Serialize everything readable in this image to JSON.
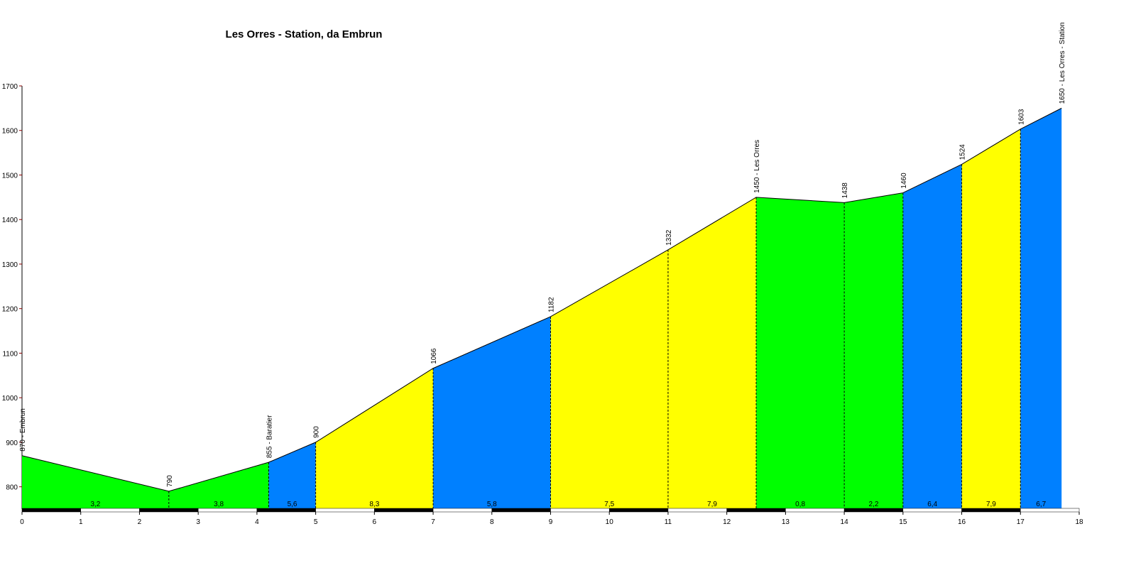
{
  "chart_data": {
    "type": "elevation-profile",
    "title": "Les Orres - Station, da Embrun",
    "x": [
      0,
      2.5,
      4.2,
      5,
      7,
      9,
      11,
      12.5,
      14,
      15,
      16,
      17,
      17.7
    ],
    "values": [
      870,
      790,
      855,
      900,
      1066,
      1182,
      1332,
      1450,
      1438,
      1460,
      1524,
      1603,
      1650
    ],
    "value_labels": [
      "870 - Embrun",
      "790",
      "855 - Baratier",
      "900",
      "1066",
      "1182",
      "1332",
      "1450 - Les Orres",
      "1438",
      "1460",
      "1524",
      "1603",
      "1650 - Les Orres - Station"
    ],
    "grades": [
      3.2,
      3.8,
      5.6,
      8.3,
      5.8,
      7.5,
      7.9,
      0.8,
      2.2,
      6.4,
      7.9,
      6.7
    ],
    "grade_labels": [
      "3,2",
      "3,8",
      "5,6",
      "8,3",
      "5,8",
      "7,5",
      "7,9",
      "0,8",
      "2,2",
      "6,4",
      "7,9",
      "6,7"
    ],
    "colors": [
      "#00ff00",
      "#00ff00",
      "#0080ff",
      "#ffff00",
      "#0080ff",
      "#ffff00",
      "#ffff00",
      "#00ff00",
      "#00ff00",
      "#0080ff",
      "#ffff00",
      "#0080ff"
    ],
    "xlim": [
      0,
      18
    ],
    "ylim": [
      750,
      1700
    ],
    "xticks": [
      0,
      1,
      2,
      3,
      4,
      5,
      6,
      7,
      8,
      9,
      10,
      11,
      12,
      13,
      14,
      15,
      16,
      17,
      18
    ],
    "yticks": [
      800,
      900,
      1000,
      1100,
      1200,
      1300,
      1400,
      1500,
      1600,
      1700
    ]
  }
}
